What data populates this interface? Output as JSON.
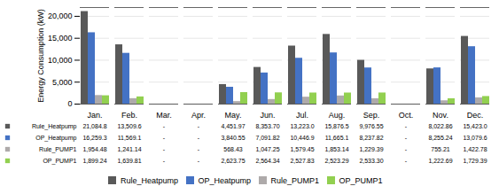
{
  "chart_data": {
    "type": "bar",
    "categories": [
      "Jan.",
      "Feb.",
      "Mar.",
      "Apr.",
      "May.",
      "Jun.",
      "Jul.",
      "Aug.",
      "Sep.",
      "Oct.",
      "Nov.",
      "Dec."
    ],
    "series": [
      {
        "name": "Rule_Heatpump",
        "color": "#595959",
        "values": [
          21084.8,
          13509.6,
          0,
          0,
          4451.97,
          8353.7,
          13223.0,
          15876.5,
          9976.55,
          0,
          8022.86,
          15423.0
        ],
        "value_labels": [
          "21,084.8",
          "13,509.6",
          "-",
          "-",
          "4,451.97",
          "8,353.70",
          "13,223.0",
          "15,876.5",
          "9,976.55",
          "-",
          "8,022.86",
          "15,423.0"
        ]
      },
      {
        "name": "OP_Heatpump",
        "color": "#4472c4",
        "values": [
          16259.3,
          11569.1,
          0,
          0,
          3840.55,
          7091.82,
          10446.9,
          11665.1,
          8237.82,
          0,
          8255.24,
          13079.6
        ],
        "value_labels": [
          "16,259.3",
          "11,569.1",
          "-",
          "-",
          "3,840.55",
          "7,091.82",
          "10,446.9",
          "11,665.1",
          "8,237.82",
          "-",
          "8,255.24",
          "13,079.6"
        ]
      },
      {
        "name": "Rule_PUMP1",
        "color": "#aeaaaa",
        "values": [
          1954.48,
          1241.14,
          0,
          0,
          568.43,
          1047.25,
          1579.45,
          1853.14,
          1229.39,
          0,
          755.21,
          1422.78
        ],
        "value_labels": [
          "1,954.48",
          "1,241.14",
          "-",
          "-",
          "568.43",
          "1,047.25",
          "1,579.45",
          "1,853.14",
          "1,229.39",
          "-",
          "755.21",
          "1,422.78"
        ]
      },
      {
        "name": "OP_PUMP1",
        "color": "#92d050",
        "values": [
          1899.24,
          1639.81,
          0,
          0,
          2623.75,
          2564.34,
          2527.83,
          2523.29,
          2533.3,
          0,
          1222.69,
          1729.39
        ],
        "value_labels": [
          "1,899.24",
          "1,639.81",
          "-",
          "-",
          "2,623.75",
          "2,564.34",
          "2,527.83",
          "2,523.29",
          "2,533.30",
          "-",
          "1,222.69",
          "1,729.39"
        ]
      }
    ],
    "ylabel": "Energy Consumption (kW)",
    "ylim": [
      0,
      22000
    ],
    "yticks": [
      0,
      {
        "value": 5000,
        "label": "5,000"
      },
      {
        "value": 10000,
        "label": "10,000"
      },
      {
        "value": 15000,
        "label": "15,000"
      },
      {
        "value": 20000,
        "label": "20,000"
      }
    ],
    "grid": true,
    "legend": "bottom"
  }
}
